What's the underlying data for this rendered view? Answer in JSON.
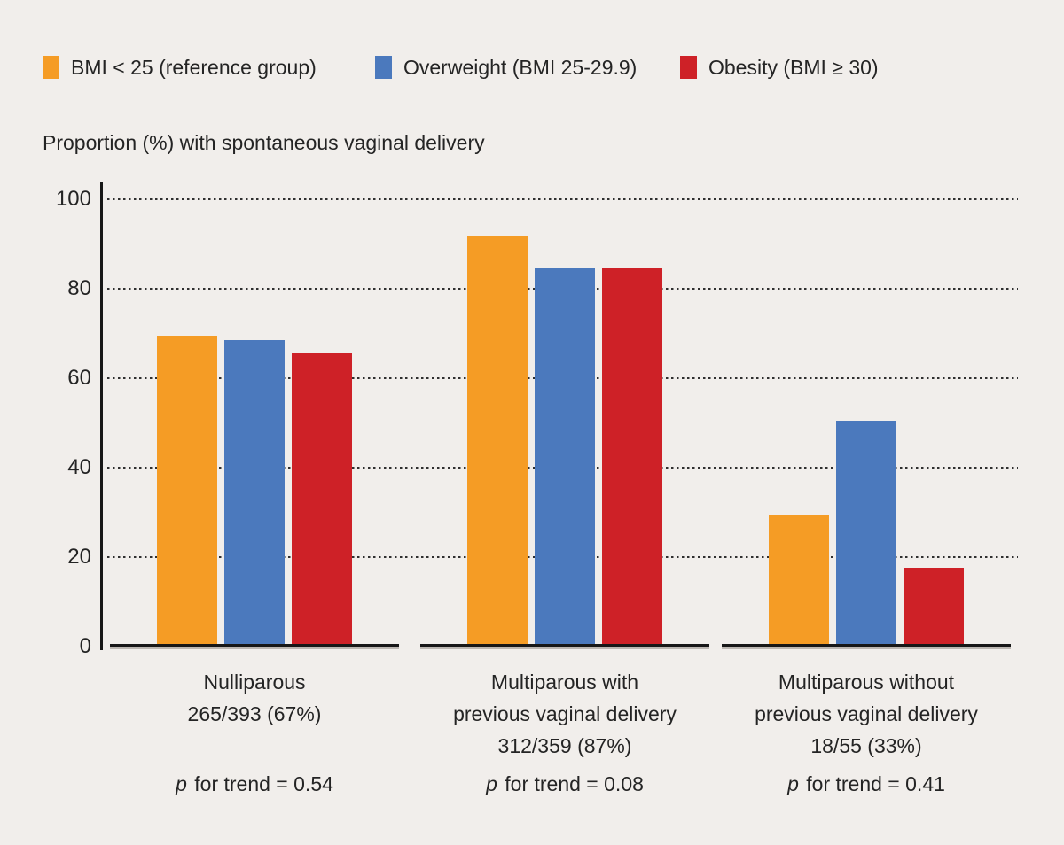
{
  "figure": {
    "background": "#F1EEEB"
  },
  "legend": {
    "items": [
      {
        "label": "BMI < 25 (reference group)",
        "color": "#F59C25"
      },
      {
        "label": "Overweight (BMI 25-29.9)",
        "color": "#4B79BD"
      },
      {
        "label": "Obesity (BMI ≥ 30)",
        "color": "#CE2127"
      }
    ]
  },
  "chart_data": {
    "type": "bar",
    "title": "Proportion (%) with spontaneous vaginal delivery",
    "xlabel": "",
    "ylabel": "Proportion (%) with spontaneous vaginal delivery",
    "ylim": [
      0,
      100
    ],
    "yticks": [
      0,
      20,
      40,
      60,
      80,
      100
    ],
    "grid": "horizontal-dotted",
    "legend_position": "top-left",
    "categories": [
      {
        "label_lines": [
          "Nulliparous",
          "265/393 (67%)"
        ],
        "p_label": {
          "italic": "p",
          "rest": " for trend = 0.54"
        }
      },
      {
        "label_lines": [
          "Multiparous with",
          "previous vaginal delivery",
          "312/359 (87%)"
        ],
        "p_label": {
          "italic": "p",
          "rest": " for trend = 0.08"
        }
      },
      {
        "label_lines": [
          "Multiparous without",
          "previous vaginal delivery",
          "18/55 (33%)"
        ],
        "p_label": {
          "italic": "p",
          "rest": " for trend = 0.41"
        }
      }
    ],
    "series": [
      {
        "name": "BMI < 25 (reference group)",
        "color": "#F59C25",
        "values": [
          69,
          91,
          29
        ]
      },
      {
        "name": "Overweight (BMI 25-29.9)",
        "color": "#4B79BD",
        "values": [
          68,
          84,
          50
        ]
      },
      {
        "name": "Obesity (BMI ≥ 30)",
        "color": "#CE2127",
        "values": [
          65,
          84,
          17
        ]
      }
    ]
  }
}
